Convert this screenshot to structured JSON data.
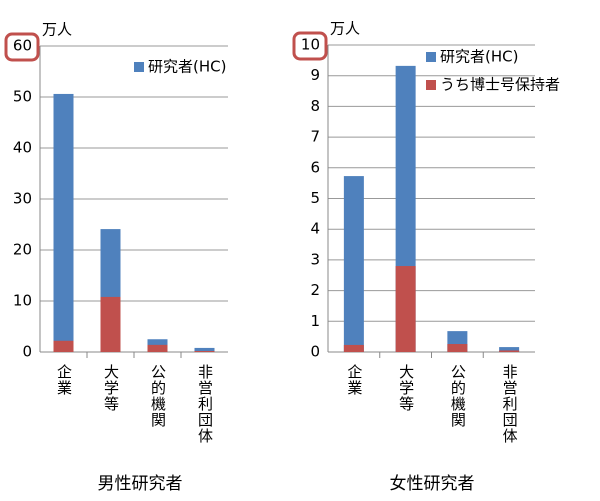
{
  "chart_data": [
    {
      "type": "bar",
      "title": "男性研究者",
      "unit": "万人",
      "categories": [
        "企業",
        "大学等",
        "公的機関",
        "非営利団体"
      ],
      "series": [
        {
          "name": "研究者(HC)",
          "color": "#4f81bd",
          "values": [
            50.6,
            24.1,
            2.5,
            0.8
          ]
        },
        {
          "color": "#c0504d",
          "values": [
            2.2,
            10.8,
            1.4,
            0.2
          ]
        }
      ],
      "ylim": [
        0,
        60
      ],
      "yticks": [
        0,
        10,
        20,
        30,
        40,
        50,
        60
      ],
      "grid": true
    },
    {
      "type": "bar",
      "title": "女性研究者",
      "unit": "万人",
      "categories": [
        "企業",
        "大学等",
        "公的機関",
        "非営利団体"
      ],
      "series": [
        {
          "name": "研究者(HC)",
          "color": "#4f81bd",
          "values": [
            5.73,
            9.32,
            0.68,
            0.16
          ]
        },
        {
          "name": "うち博士号保持者",
          "color": "#c0504d",
          "values": [
            0.23,
            2.8,
            0.26,
            0.05
          ]
        }
      ],
      "ylim": [
        0,
        10
      ],
      "yticks": [
        0,
        1,
        2,
        3,
        4,
        5,
        6,
        7,
        8,
        9,
        10
      ],
      "grid": true
    }
  ]
}
